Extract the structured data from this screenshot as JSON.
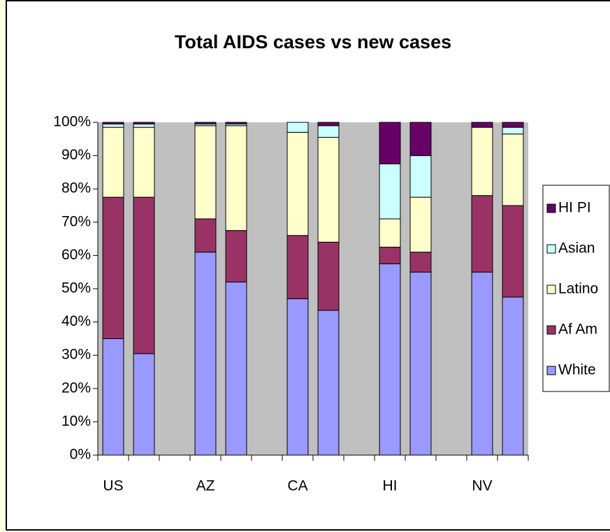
{
  "chart_data": {
    "type": "stacked_bar",
    "title": "Total AIDS cases vs new cases",
    "categories": [
      "US",
      null,
      null,
      "AZ",
      null,
      null,
      "CA",
      null,
      null,
      "HI",
      null,
      null,
      "NV",
      null
    ],
    "series": [
      {
        "name": "White",
        "color": "#9999ff",
        "values": [
          35,
          30.5,
          null,
          61,
          52,
          null,
          47,
          43.5,
          null,
          57.5,
          55,
          null,
          55,
          47.5
        ]
      },
      {
        "name": "Af Am",
        "color": "#993366",
        "values": [
          42.5,
          47,
          null,
          10,
          15.5,
          null,
          19,
          20.5,
          null,
          5,
          6,
          null,
          23,
          27.5
        ]
      },
      {
        "name": "Latino",
        "color": "#ffffcc",
        "values": [
          21,
          21,
          null,
          28,
          31.5,
          null,
          31,
          31.5,
          null,
          8.5,
          16.5,
          null,
          20.5,
          21.5
        ]
      },
      {
        "name": "Asian",
        "color": "#ccffff",
        "values": [
          1,
          1,
          null,
          0.5,
          0.5,
          null,
          3,
          3.5,
          null,
          16.5,
          12.5,
          null,
          0,
          2
        ]
      },
      {
        "name": "HI PI",
        "color": "#660066",
        "values": [
          0.5,
          0.5,
          null,
          0.5,
          0.5,
          null,
          0,
          1,
          null,
          12.5,
          10,
          null,
          1.5,
          1.5
        ]
      }
    ],
    "ylim": [
      0,
      100
    ],
    "yticks": [
      {
        "value": 0,
        "label": "0%"
      },
      {
        "value": 10,
        "label": "10%"
      },
      {
        "value": 20,
        "label": "20%"
      },
      {
        "value": 30,
        "label": "30%"
      },
      {
        "value": 40,
        "label": "40%"
      },
      {
        "value": 50,
        "label": "50%"
      },
      {
        "value": 60,
        "label": "60%"
      },
      {
        "value": 70,
        "label": "70%"
      },
      {
        "value": 80,
        "label": "80%"
      },
      {
        "value": 90,
        "label": "90%"
      },
      {
        "value": 100,
        "label": "100%"
      }
    ],
    "grid": false,
    "legend": "right"
  }
}
